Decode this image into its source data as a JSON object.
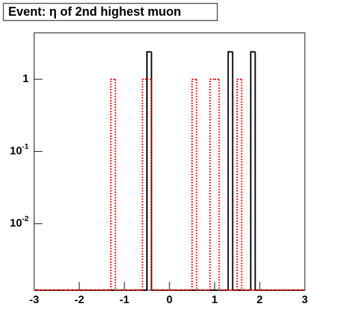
{
  "chart_data": {
    "type": "histogram",
    "title": "Event: η of 2nd highest muon",
    "bins": [
      -3.0,
      -2.9,
      -2.8,
      -2.7,
      -2.6,
      -2.5,
      -2.4,
      -2.3,
      -2.2,
      -2.1,
      -2.0,
      -1.9,
      -1.8,
      -1.7,
      -1.6,
      -1.5,
      -1.4,
      -1.3,
      -1.2,
      -1.1,
      -1.0,
      -0.9,
      -0.8,
      -0.7,
      -0.6,
      -0.5,
      -0.4,
      -0.3,
      -0.2,
      -0.1,
      0.0,
      0.1,
      0.2,
      0.3,
      0.4,
      0.5,
      0.6,
      0.7,
      0.8,
      0.9,
      1.0,
      1.1,
      1.2,
      1.3,
      1.4,
      1.5,
      1.6,
      1.7,
      1.8,
      1.9,
      2.0,
      2.1,
      2.2,
      2.3,
      2.4,
      2.5,
      2.6,
      2.7,
      2.8,
      2.9,
      3.0
    ],
    "series": [
      {
        "color": "#000000",
        "line_style": "solid",
        "values": [
          0,
          0,
          0,
          0,
          0,
          0,
          0,
          0,
          0,
          0,
          0,
          0,
          0,
          0,
          0,
          0,
          0,
          0,
          0,
          0,
          0,
          0,
          0,
          0,
          0,
          2.4,
          0,
          0,
          0,
          0,
          0,
          0,
          0,
          0,
          0,
          0,
          0,
          0,
          0,
          0,
          0,
          0,
          0,
          2.4,
          0,
          0,
          0,
          0,
          2.4,
          0,
          0,
          0,
          0,
          0,
          0,
          0,
          0,
          0,
          0,
          0
        ]
      },
      {
        "color": "#ff0000",
        "line_style": "dotted",
        "values": [
          0,
          0,
          0,
          0,
          0,
          0,
          0,
          0,
          0,
          0,
          0,
          0,
          0,
          0,
          0,
          0,
          0,
          1,
          0,
          0,
          0,
          0,
          0,
          0,
          1,
          1,
          0,
          0,
          0,
          0,
          0,
          0,
          0,
          0,
          0,
          1,
          0,
          0,
          0,
          1,
          1,
          0,
          0,
          0,
          0,
          1,
          0,
          0,
          0,
          0,
          0,
          0,
          0,
          0,
          0,
          0,
          0,
          0,
          0,
          0
        ]
      }
    ],
    "xlim": [
      -3,
      3
    ],
    "xticks": [
      -3,
      -2,
      -1,
      0,
      1,
      2,
      3
    ],
    "ylim": [
      0.0012,
      4.4
    ],
    "log_y": true,
    "yticks": [
      {
        "value": 1,
        "label": "1"
      },
      {
        "value": 0.1,
        "label": "10",
        "exponent": "-1"
      },
      {
        "value": 0.01,
        "label": "10",
        "exponent": "-2"
      }
    ]
  }
}
